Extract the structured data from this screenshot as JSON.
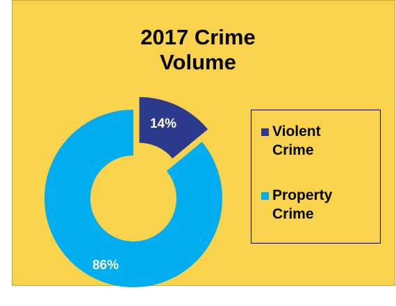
{
  "chart_data": {
    "type": "pie",
    "title": "2017 Crime Volume",
    "title_lines": [
      "2017 Crime",
      "Volume"
    ],
    "categories": [
      "Violent Crime",
      "Property Crime"
    ],
    "values": [
      14,
      86
    ],
    "data_labels": [
      "14%",
      "86%"
    ],
    "colors": [
      "#2b3a8c",
      "#00aeef"
    ],
    "style": "doughnut",
    "exploded_slice": "Violent Crime",
    "legend_position": "right",
    "legend_items": [
      {
        "lines": [
          "Violent",
          "Crime"
        ]
      },
      {
        "lines": [
          "Property",
          "Crime"
        ]
      }
    ]
  },
  "background_color": "#f9d34c"
}
